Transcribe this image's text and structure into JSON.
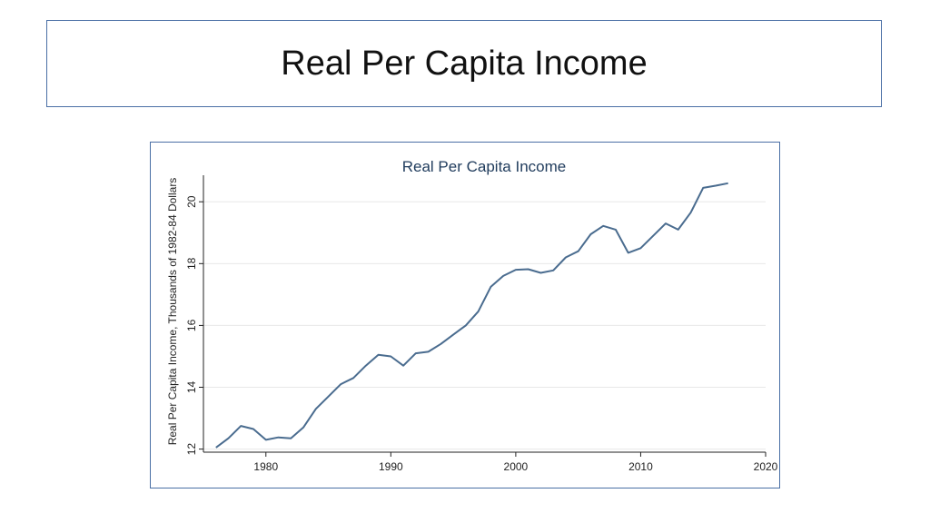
{
  "slide": {
    "title": "Real Per Capita Income"
  },
  "chart_data": {
    "type": "line",
    "title": "Real Per Capita Income",
    "xlabel": "",
    "ylabel": "Real Per Capita Income, Thousands of 1982-84 Dollars",
    "xlim": [
      1975,
      2020
    ],
    "ylim": [
      11.9,
      20.8
    ],
    "xticks": [
      1980,
      1990,
      2000,
      2010,
      2020
    ],
    "yticks": [
      12,
      14,
      16,
      18,
      20
    ],
    "grid": true,
    "colors": {
      "line": "#4a6c8f",
      "grid": "#e8e8e8",
      "axis": "#222222",
      "title": "#1f3b5c"
    },
    "x": [
      1976,
      1977,
      1978,
      1979,
      1980,
      1981,
      1982,
      1983,
      1984,
      1985,
      1986,
      1987,
      1988,
      1989,
      1990,
      1991,
      1992,
      1993,
      1994,
      1995,
      1996,
      1997,
      1998,
      1999,
      2000,
      2001,
      2002,
      2003,
      2004,
      2005,
      2006,
      2007,
      2008,
      2009,
      2010,
      2011,
      2012,
      2013,
      2014,
      2015,
      2016,
      2017
    ],
    "y": [
      12.05,
      12.35,
      12.75,
      12.65,
      12.3,
      12.38,
      12.35,
      12.7,
      13.3,
      13.7,
      14.1,
      14.3,
      14.7,
      15.05,
      15.0,
      14.7,
      15.1,
      15.15,
      15.4,
      15.7,
      16.0,
      16.45,
      17.25,
      17.6,
      17.8,
      17.82,
      17.7,
      17.78,
      18.2,
      18.4,
      18.95,
      19.22,
      19.1,
      18.35,
      18.5,
      18.9,
      19.3,
      19.1,
      19.65,
      20.45,
      20.52,
      20.6
    ]
  }
}
